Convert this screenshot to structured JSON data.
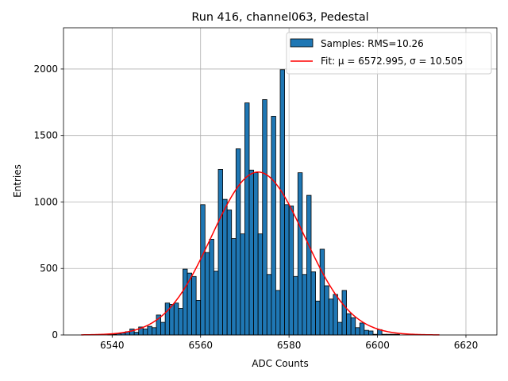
{
  "chart_data": {
    "type": "histogram",
    "title": "Run 416, channel063, Pedestal",
    "xlabel": "ADC Counts",
    "ylabel": "Entries",
    "xlim": [
      6529,
      6627
    ],
    "ylim": [
      0,
      2310
    ],
    "xticks": [
      6540,
      6560,
      6580,
      6600,
      6620
    ],
    "yticks": [
      0,
      500,
      1000,
      1500,
      2000
    ],
    "grid": true,
    "legend_position": "top-right",
    "colors": {
      "bar_fill": "#1f77b4",
      "bar_edge": "#000000",
      "fit_line": "#ff0000"
    },
    "histogram": {
      "name": "Samples: RMS=10.26",
      "bin_width": 1,
      "bin_starts": [
        6539,
        6540,
        6541,
        6542,
        6543,
        6544,
        6545,
        6546,
        6547,
        6548,
        6549,
        6550,
        6551,
        6552,
        6553,
        6554,
        6555,
        6556,
        6557,
        6558,
        6559,
        6560,
        6561,
        6562,
        6563,
        6564,
        6565,
        6566,
        6567,
        6568,
        6569,
        6570,
        6571,
        6572,
        6573,
        6574,
        6575,
        6576,
        6577,
        6578,
        6579,
        6580,
        6581,
        6582,
        6583,
        6584,
        6585,
        6586,
        6587,
        6588,
        6589,
        6590,
        6591,
        6592,
        6593,
        6594,
        6595,
        6596,
        6597,
        6598,
        6599,
        6600,
        6601,
        6602,
        6603,
        6604
      ],
      "counts": [
        3,
        5,
        10,
        15,
        25,
        45,
        20,
        60,
        45,
        65,
        55,
        150,
        95,
        240,
        230,
        240,
        200,
        495,
        465,
        440,
        260,
        980,
        620,
        720,
        480,
        1245,
        1020,
        940,
        725,
        1400,
        760,
        1745,
        1240,
        1220,
        760,
        1770,
        455,
        1645,
        335,
        1995,
        980,
        970,
        440,
        1220,
        455,
        1050,
        475,
        255,
        645,
        370,
        270,
        305,
        95,
        335,
        160,
        130,
        55,
        90,
        35,
        30,
        5,
        40,
        5,
        5,
        5,
        5
      ]
    },
    "fit": {
      "name": "Fit: μ = 6572.995, σ = 10.505",
      "mu": 6572.995,
      "sigma": 10.505,
      "amplitude": 1225,
      "x_range": [
        6533,
        6614
      ]
    }
  }
}
